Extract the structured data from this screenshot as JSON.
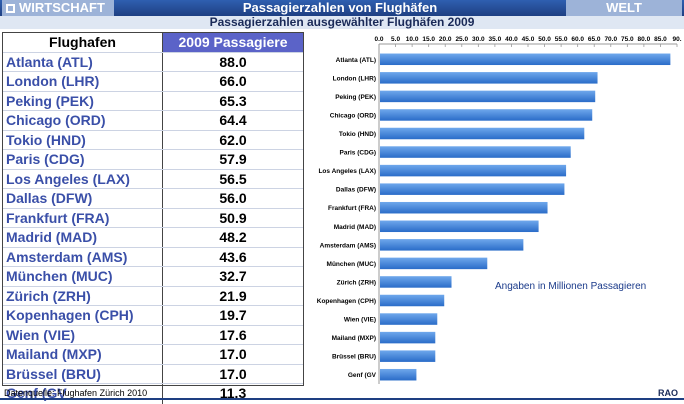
{
  "header": {
    "brand_left": "WIRTSCHAFT",
    "title": "Passagierzahlen von Flughäfen",
    "brand_right": "WELT",
    "subtitle": "Passagierzahlen ausgewählter Flughäfen 2009"
  },
  "table": {
    "col_airport": "Flughafen",
    "col_value": "2009 Passagiere",
    "rows": [
      {
        "name": "Atlanta (ATL)",
        "value": "88.0"
      },
      {
        "name": "London (LHR)",
        "value": "66.0"
      },
      {
        "name": "Peking (PEK)",
        "value": "65.3"
      },
      {
        "name": "Chicago (ORD)",
        "value": "64.4"
      },
      {
        "name": "Tokio (HND)",
        "value": "62.0"
      },
      {
        "name": "Paris (CDG)",
        "value": "57.9"
      },
      {
        "name": "Los Angeles (LAX)",
        "value": "56.5"
      },
      {
        "name": "Dallas (DFW)",
        "value": "56.0"
      },
      {
        "name": "Frankfurt (FRA)",
        "value": "50.9"
      },
      {
        "name": "Madrid (MAD)",
        "value": "48.2"
      },
      {
        "name": "Amsterdam (AMS)",
        "value": "43.6"
      },
      {
        "name": "München (MUC)",
        "value": "32.7"
      },
      {
        "name": "Zürich (ZRH)",
        "value": "21.9"
      },
      {
        "name": "Kopenhagen (CPH)",
        "value": "19.7"
      },
      {
        "name": "Wien (VIE)",
        "value": "17.6"
      },
      {
        "name": "Mailand (MXP)",
        "value": "17.0"
      },
      {
        "name": "Brüssel (BRU)",
        "value": "17.0"
      },
      {
        "name": "Genf (GV",
        "value": "11.3"
      }
    ]
  },
  "chart_data": {
    "type": "bar",
    "orientation": "horizontal",
    "categories": [
      "Atlanta (ATL)",
      "London (LHR)",
      "Peking (PEK)",
      "Chicago (ORD)",
      "Tokio (HND)",
      "Paris (CDG)",
      "Los Angeles (LAX)",
      "Dallas (DFW)",
      "Frankfurt (FRA)",
      "Madrid (MAD)",
      "Amsterdam (AMS)",
      "München (MUC)",
      "Zürich (ZRH)",
      "Kopenhagen (CPH)",
      "Wien (VIE)",
      "Mailand (MXP)",
      "Brüssel (BRU)",
      "Genf (GV"
    ],
    "values": [
      88.0,
      66.0,
      65.3,
      64.4,
      62.0,
      57.9,
      56.5,
      56.0,
      50.9,
      48.2,
      43.6,
      32.7,
      21.9,
      19.7,
      17.6,
      17.0,
      17.0,
      11.3
    ],
    "xlim": [
      0,
      90
    ],
    "x_ticks": [
      "0.0",
      "5.0",
      "10.0",
      "15.0",
      "20.0",
      "25.0",
      "30.0",
      "35.0",
      "40.0",
      "45.0",
      "50.0",
      "55.0",
      "60.0",
      "65.0",
      "70.0",
      "75.0",
      "80.0",
      "85.0",
      "90."
    ],
    "x_axis_position": "top",
    "grid": false,
    "annotation": "Angaben in Millionen Passagieren",
    "bar_color": "#3a7fd8"
  },
  "footer": {
    "source": "Datenquelle: Flughafen Zürich  2010",
    "credit": "RAO"
  }
}
